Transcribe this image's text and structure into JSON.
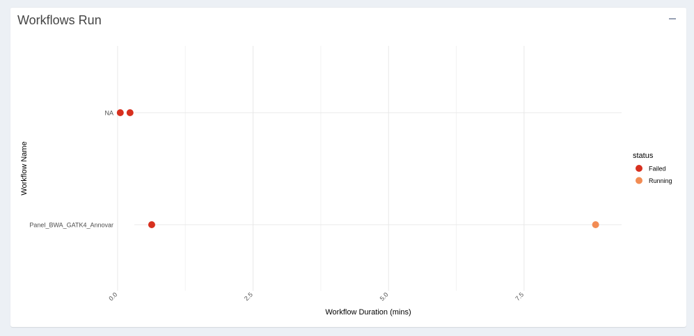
{
  "card": {
    "title": "Workflows Run"
  },
  "chart_data": {
    "type": "scatter",
    "xlabel": "Workflow Duration (mins)",
    "ylabel": "Workflow Name",
    "categories": [
      "NA",
      "Panel_BWA_GATK4_Annovar"
    ],
    "x_ticks": [
      0.0,
      2.5,
      5.0,
      7.5
    ],
    "x_tick_labels": [
      "0.0",
      "2.5",
      "5.0",
      "7.5"
    ],
    "xlim": [
      -0.05,
      9.3
    ],
    "grid": true,
    "legend": {
      "title": "status",
      "position": "right",
      "entries": [
        {
          "label": "Failed",
          "color": "#d7301f"
        },
        {
          "label": "Running",
          "color": "#f28c54"
        }
      ]
    },
    "series": [
      {
        "name": "Failed",
        "color": "#d7301f",
        "points": [
          {
            "x": 0.05,
            "y": "NA"
          },
          {
            "x": 0.23,
            "y": "NA"
          },
          {
            "x": 0.63,
            "y": "Panel_BWA_GATK4_Annovar"
          }
        ]
      },
      {
        "name": "Running",
        "color": "#f28c54",
        "points": [
          {
            "x": 8.82,
            "y": "Panel_BWA_GATK4_Annovar"
          }
        ]
      }
    ]
  }
}
